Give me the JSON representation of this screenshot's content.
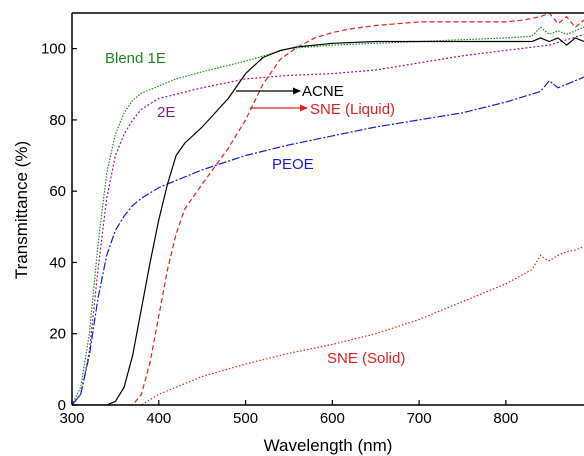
{
  "chart_data": {
    "type": "line",
    "xlabel": "Wavelength (nm)",
    "ylabel": "Transmittance (%)",
    "xlim": [
      300,
      890
    ],
    "ylim": [
      0,
      110
    ],
    "xticks": [
      "300",
      "400",
      "500",
      "600",
      "700",
      "800"
    ],
    "yticks": [
      "0",
      "20",
      "40",
      "60",
      "80",
      "100"
    ],
    "grid": false,
    "series": [
      {
        "name": "Blend 1E",
        "color": "#1a8a1a",
        "dash": "1.5 1.5",
        "x": [
          300,
          310,
          320,
          330,
          340,
          350,
          360,
          370,
          380,
          390,
          400,
          420,
          450,
          500,
          550,
          600,
          650,
          700,
          750,
          800,
          830,
          840,
          850,
          860,
          870,
          880,
          890
        ],
        "y": [
          0,
          5,
          20,
          45,
          65,
          76,
          82,
          85.5,
          87.5,
          88.5,
          89.5,
          91.5,
          93.5,
          96.5,
          100,
          101,
          101.5,
          102,
          102.5,
          103,
          103.5,
          106,
          104,
          105,
          104,
          105,
          106
        ]
      },
      {
        "name": "2E",
        "color": "#8a1a8a",
        "dash": "2 2",
        "x": [
          300,
          310,
          320,
          330,
          340,
          350,
          360,
          370,
          380,
          400,
          450,
          500,
          550,
          600,
          650,
          700,
          750,
          800,
          850,
          890
        ],
        "y": [
          0,
          3,
          15,
          38,
          58,
          70,
          76,
          80,
          83,
          86,
          89,
          91.5,
          92.5,
          93,
          94,
          96,
          98,
          99.5,
          101,
          104
        ]
      },
      {
        "name": "PEOE",
        "color": "#1a1ad6",
        "dash": "8 2 2 2",
        "x": [
          300,
          310,
          320,
          330,
          340,
          350,
          360,
          370,
          380,
          400,
          450,
          500,
          550,
          600,
          650,
          700,
          750,
          800,
          840,
          850,
          860,
          870,
          880,
          890
        ],
        "y": [
          0,
          3,
          14,
          30,
          42,
          49,
          53,
          56,
          58,
          61,
          66,
          70,
          73,
          75.5,
          78,
          80,
          82,
          85,
          88,
          91,
          89,
          90,
          91,
          92
        ]
      },
      {
        "name": "ACNE",
        "color": "#000000",
        "dash": "",
        "x": [
          300,
          340,
          350,
          360,
          370,
          380,
          390,
          400,
          410,
          420,
          430,
          450,
          480,
          500,
          520,
          540,
          560,
          580,
          600,
          650,
          700,
          750,
          800,
          830,
          840,
          850,
          860,
          870,
          880,
          890
        ],
        "y": [
          0,
          0,
          1,
          5,
          14,
          27,
          40,
          52,
          62,
          70,
          73.5,
          78,
          86,
          93,
          97.5,
          99.5,
          100.5,
          101,
          101.5,
          102,
          102,
          102,
          102,
          102,
          103,
          102,
          103,
          101,
          103,
          102
        ]
      },
      {
        "name": "SNE (Liquid)",
        "color": "#e02020",
        "dash": "5 3",
        "x": [
          300,
          370,
          380,
          390,
          400,
          410,
          420,
          430,
          450,
          480,
          500,
          520,
          540,
          560,
          580,
          600,
          620,
          650,
          700,
          750,
          800,
          820,
          840,
          850,
          860,
          870,
          880,
          890
        ],
        "y": [
          0,
          0,
          3,
          12,
          25,
          38,
          48,
          55,
          62,
          72,
          80,
          90,
          97,
          100.5,
          103,
          104.5,
          105.5,
          106.5,
          107.5,
          107.5,
          107.5,
          108,
          109,
          110,
          107,
          109,
          106,
          108
        ]
      },
      {
        "name": "SNE (Solid)",
        "color": "#e02020",
        "dash": "1.5 2",
        "x": [
          300,
          380,
          400,
          450,
          500,
          550,
          600,
          650,
          700,
          750,
          800,
          830,
          840,
          845,
          850,
          860,
          870,
          880,
          890
        ],
        "y": [
          0,
          0,
          3,
          8,
          11.5,
          14.5,
          17,
          20,
          24,
          29,
          34,
          38,
          42,
          41,
          40.5,
          42,
          43,
          43.5,
          44.5
        ]
      }
    ],
    "annotations": [
      {
        "text": "Blend 1E",
        "color": "#1a8a1a"
      },
      {
        "text": "2E",
        "color": "#8a1a8a"
      },
      {
        "text": "ACNE",
        "color": "#000000"
      },
      {
        "text": "SNE (Liquid)",
        "color": "#e02020"
      },
      {
        "text": "PEOE",
        "color": "#1a1ad6"
      },
      {
        "text": "SNE (Solid)",
        "color": "#e02020"
      }
    ]
  }
}
